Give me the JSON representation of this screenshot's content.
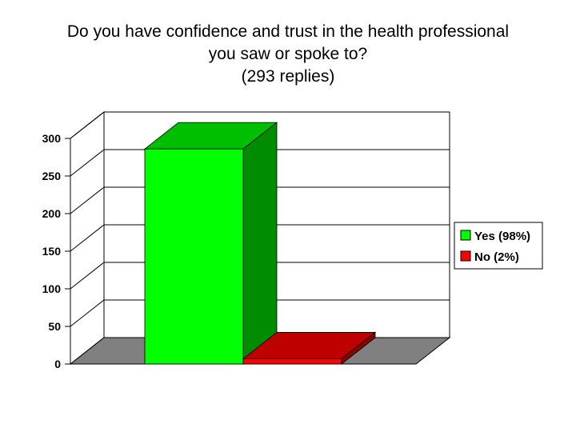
{
  "chart_data": {
    "type": "bar",
    "title": [
      "Do you have confidence and trust in the health professional",
      "you saw or spoke to?",
      "(293 replies)"
    ],
    "categories": [
      "Yes (98%)",
      "No (2%)"
    ],
    "values": [
      286,
      7
    ],
    "colors": [
      "#00ff00",
      "#ff0000"
    ],
    "ylim": [
      0,
      300
    ],
    "yticks": [
      0,
      50,
      100,
      150,
      200,
      250,
      300
    ],
    "grid": true,
    "legend": "right"
  }
}
